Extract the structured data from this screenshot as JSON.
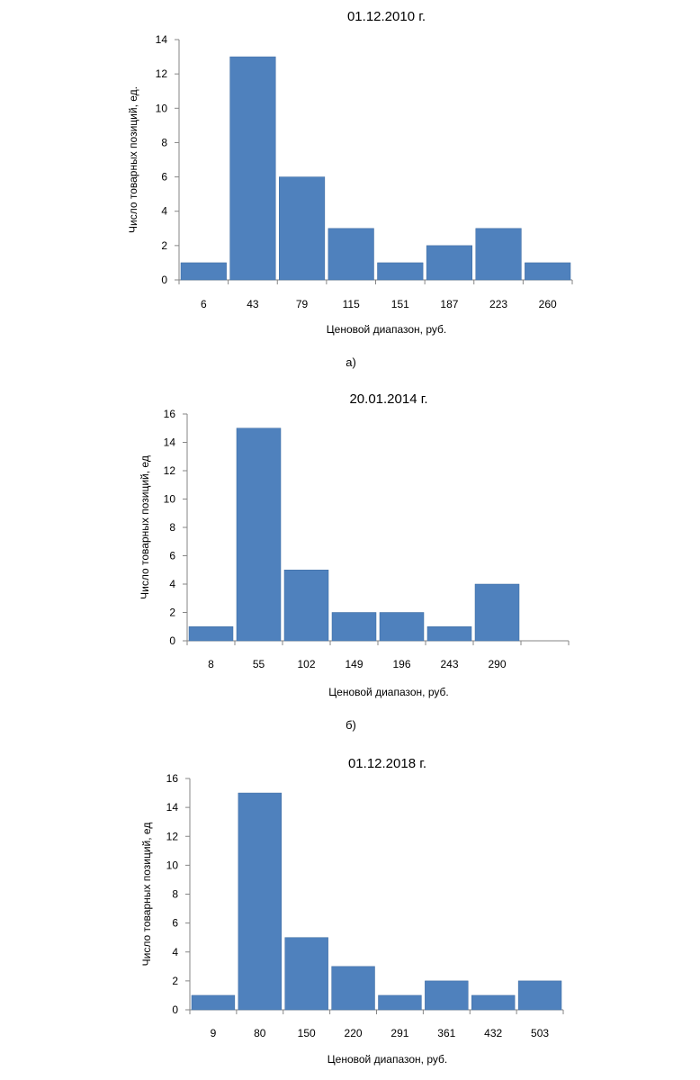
{
  "chart_data": [
    {
      "type": "bar",
      "title": "01.12.2010 г.",
      "xlabel": "Ценовой диапазон, руб.",
      "ylabel": "Число товарных позиций, ед.",
      "categories": [
        "6",
        "43",
        "79",
        "115",
        "151",
        "187",
        "223",
        "260"
      ],
      "values": [
        1,
        13,
        6,
        3,
        1,
        2,
        3,
        1
      ],
      "ylim": [
        0,
        14
      ],
      "yticks": [
        "0",
        "2",
        "4",
        "6",
        "8",
        "10",
        "12",
        "14"
      ],
      "caption": "а)",
      "bar_color": "#4f81bd",
      "grid": false
    },
    {
      "type": "bar",
      "title": "20.01.2014 г.",
      "xlabel": "Ценовой диапазон, руб.",
      "ylabel": "Число товарных позиций, ед",
      "categories": [
        "8",
        "55",
        "102",
        "149",
        "196",
        "243",
        "290",
        ""
      ],
      "values": [
        1,
        15,
        5,
        2,
        2,
        1,
        4,
        0
      ],
      "ylim": [
        0,
        16
      ],
      "yticks": [
        "0",
        "2",
        "4",
        "6",
        "8",
        "10",
        "12",
        "14",
        "16"
      ],
      "caption": "б)",
      "bar_color": "#4f81bd",
      "grid": false
    },
    {
      "type": "bar",
      "title": "01.12.2018 г.",
      "xlabel": "Ценовой диапазон, руб.",
      "ylabel": "Число товарных позиций, ед",
      "categories": [
        "9",
        "80",
        "150",
        "220",
        "291",
        "361",
        "432",
        "503"
      ],
      "values": [
        1,
        15,
        5,
        3,
        1,
        2,
        1,
        2
      ],
      "ylim": [
        0,
        16
      ],
      "yticks": [
        "0",
        "2",
        "4",
        "6",
        "8",
        "10",
        "12",
        "14",
        "16"
      ],
      "caption": "",
      "bar_color": "#4f81bd",
      "grid": false
    }
  ]
}
